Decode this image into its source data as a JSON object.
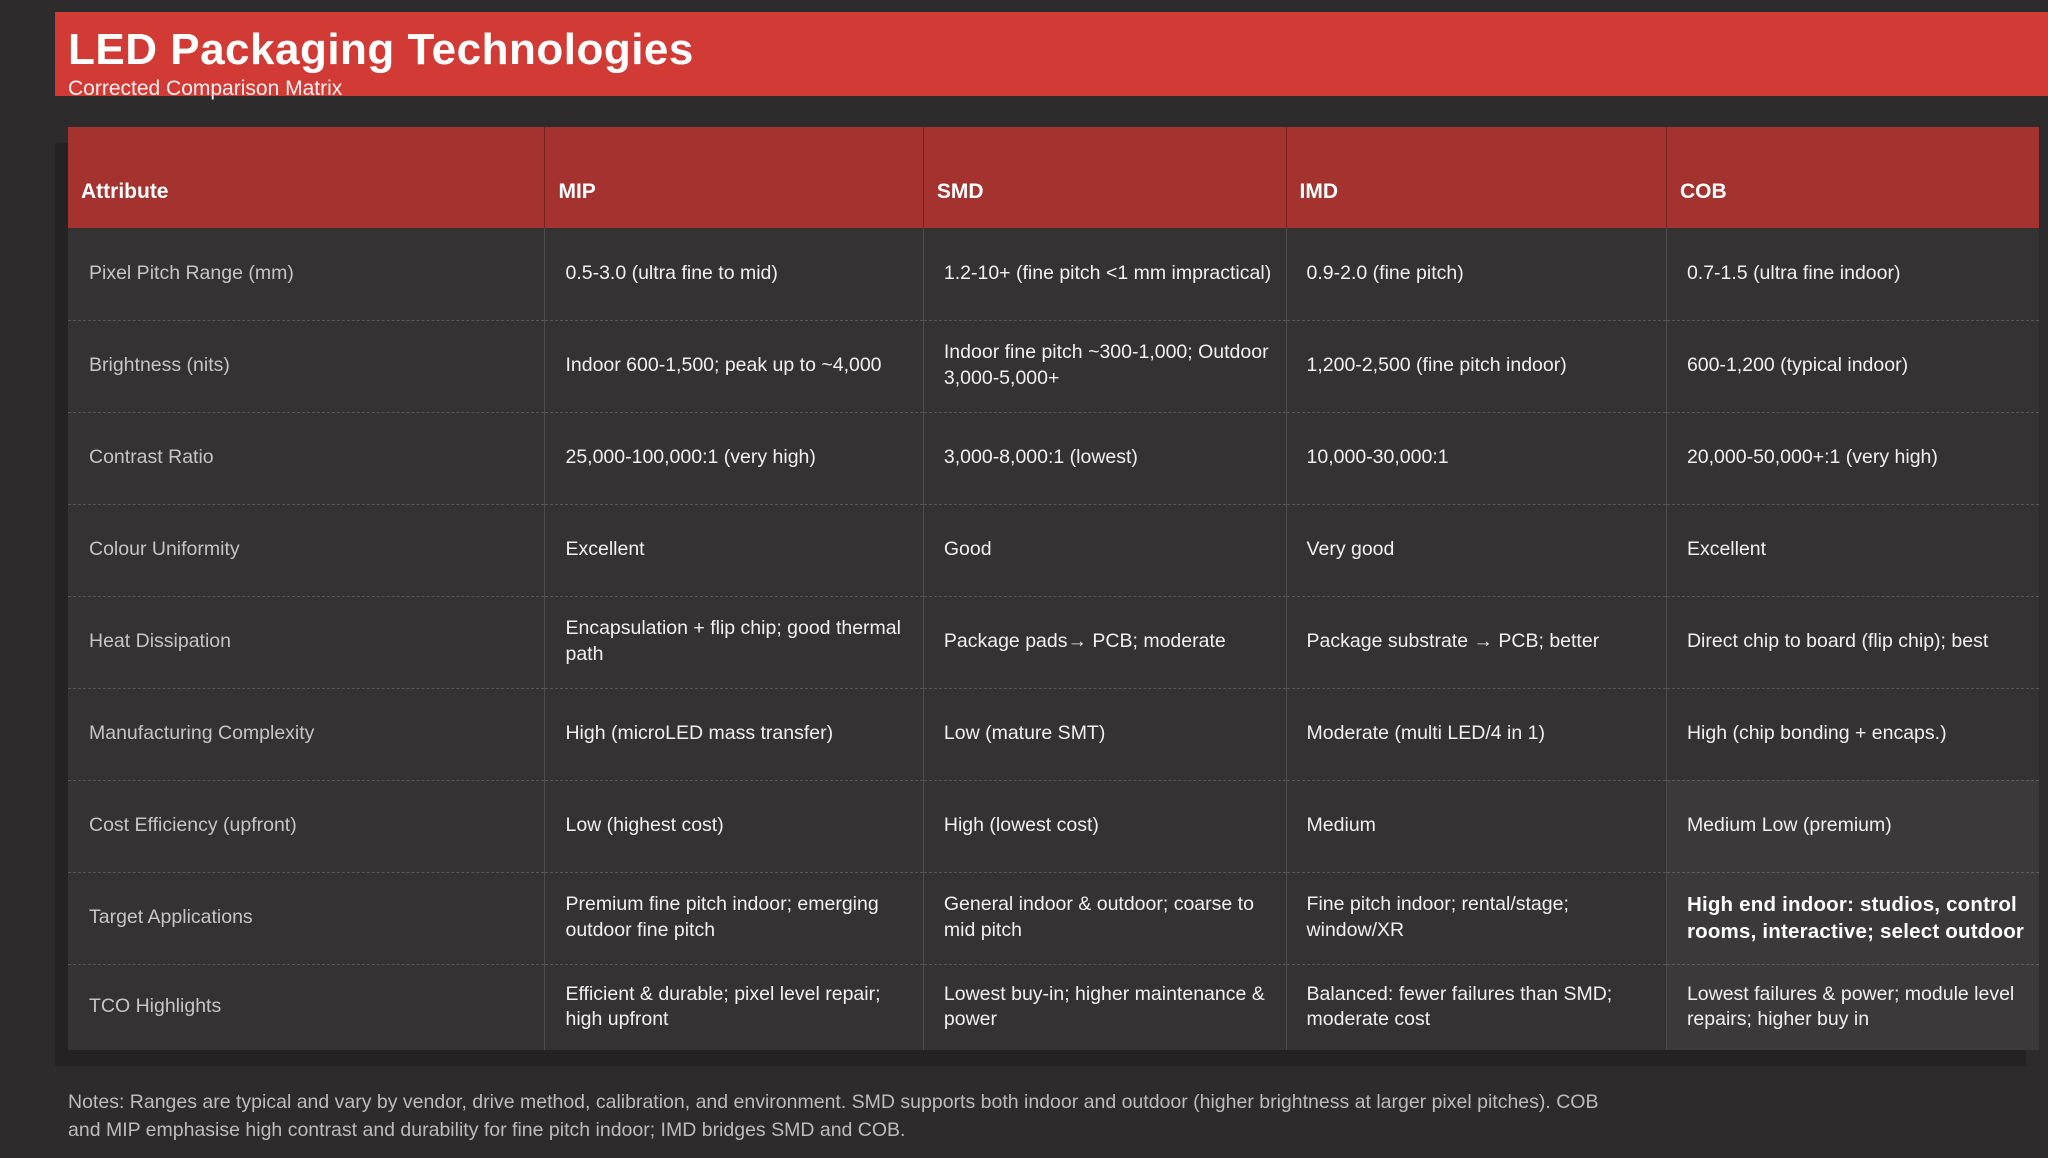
{
  "banner": {
    "title": "LED Packaging Technologies",
    "subtitle": "Corrected Comparison Matrix",
    "bg_color": "#d23b35"
  },
  "table": {
    "header_bg_color": "#a4332f",
    "columns": [
      "Attribute",
      "MIP",
      "SMD",
      "IMD",
      "COB"
    ],
    "rows": [
      {
        "attribute": "Pixel Pitch Range (mm)",
        "cells": [
          "0.5-3.0 (ultra fine to mid)",
          "1.2-10+ (fine pitch <1 mm impractical)",
          "0.9-2.0 (fine pitch)",
          "0.7-1.5 (ultra fine indoor)"
        ]
      },
      {
        "attribute": "Brightness (nits)",
        "cells": [
          "Indoor 600-1,500; peak up to ~4,000",
          "Indoor fine pitch ~300-1,000; Outdoor 3,000-5,000+",
          "1,200-2,500 (fine pitch indoor)",
          "600-1,200 (typical indoor)"
        ]
      },
      {
        "attribute": "Contrast Ratio",
        "cells": [
          "25,000-100,000:1 (very high)",
          "3,000-8,000:1 (lowest)",
          "10,000-30,000:1",
          "20,000-50,000+:1 (very high)"
        ]
      },
      {
        "attribute": "Colour Uniformity",
        "cells": [
          "Excellent",
          "Good",
          "Very good",
          "Excellent"
        ]
      },
      {
        "attribute": "Heat Dissipation",
        "cells": [
          "Encapsulation + flip chip; good thermal path",
          "Package pads→ PCB; moderate",
          "Package substrate → PCB; better",
          "Direct chip to board (flip chip); best"
        ]
      },
      {
        "attribute": "Manufacturing Complexity",
        "cells": [
          "High (microLED mass transfer)",
          "Low (mature SMT)",
          "Moderate (multi LED/4 in 1)",
          "High (chip bonding + encaps.)"
        ]
      },
      {
        "attribute": "Cost Efficiency (upfront)",
        "cells": [
          "Low (highest cost)",
          "High (lowest cost)",
          "Medium",
          "Medium Low (premium)"
        ],
        "light": [
          3
        ]
      },
      {
        "attribute": "Target Applications",
        "cells": [
          "Premium fine pitch indoor; emerging outdoor fine pitch",
          "General indoor & outdoor; coarse to mid pitch",
          "Fine pitch indoor; rental/stage; window/XR",
          "High end indoor: studios, control rooms, interactive; select outdoor"
        ],
        "light": [
          3
        ],
        "bold": [
          3
        ]
      },
      {
        "attribute": "TCO Highlights",
        "cells": [
          "Efficient & durable; pixel level repair; high upfront",
          "Lowest buy-in; higher maintenance & power",
          "Balanced: fewer failures than SMD; moderate cost",
          "Lowest failures & power; module level repairs; higher buy in"
        ],
        "light": [
          3
        ]
      }
    ]
  },
  "notes": {
    "text": "Notes: Ranges are typical and vary by vendor, drive method, calibration, and environment. SMD supports both indoor and outdoor (higher brightness at larger pixel pitches). COB and MIP emphasise high contrast and durability for fine pitch indoor; IMD bridges SMD and COB."
  }
}
